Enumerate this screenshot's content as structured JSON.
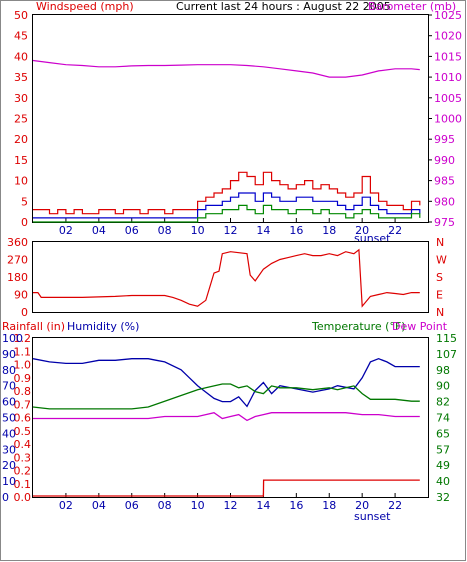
{
  "colors": {
    "wind": "#dd0000",
    "gust": "#dd0000",
    "wind_avg": "#0000cc",
    "wind_green": "#008800",
    "barometer": "#cc00cc",
    "direction": "#dd0000",
    "rain": "#dd0000",
    "humidity": "#0000aa",
    "temperature": "#007700",
    "dewpoint": "#cc00cc",
    "axis": "#000000",
    "tick_left_top": "#dd0000",
    "tick_right_top": "#cc00cc",
    "tick_left_bottom_rain": "#dd0000",
    "tick_left_bottom_hum": "#0000aa",
    "tick_right_bottom": "#007700"
  },
  "chart_data": [
    {
      "type": "line",
      "title": "Current last 24 hours : August 22 2005",
      "left_label": "Windspeed (mph)",
      "right_label": "Barometer (mb)",
      "ylim_left": [
        0,
        50
      ],
      "ylim_right": [
        975,
        1025
      ],
      "yticks_left": [
        "0",
        "5",
        "10",
        "15",
        "20",
        "25",
        "30",
        "35",
        "40",
        "45",
        "50"
      ],
      "yticks_right": [
        "975",
        "980",
        "985",
        "990",
        "995",
        "1000",
        "1005",
        "1010",
        "1015",
        "1020",
        "1025"
      ],
      "xticks": [
        "02",
        "04",
        "06",
        "08",
        "10",
        "12",
        "14",
        "16",
        "18",
        "20",
        "22"
      ],
      "x_annotation": "sunset",
      "xlim": [
        0,
        24
      ],
      "series": [
        {
          "axis": "right",
          "x": [
            0,
            1,
            2,
            3,
            4,
            5,
            6,
            7,
            8,
            9,
            10,
            11,
            12,
            13,
            14,
            15,
            16,
            17,
            18,
            19,
            20,
            21,
            22,
            23,
            23.5
          ],
          "values": [
            1014,
            1013.5,
            1013,
            1012.8,
            1012.5,
            1012.5,
            1012.7,
            1012.8,
            1012.8,
            1012.9,
            1013,
            1013,
            1013,
            1012.8,
            1012.5,
            1012,
            1011.5,
            1011,
            1010,
            1010,
            1010.5,
            1011.5,
            1012,
            1012,
            1011.8
          ]
        },
        {
          "axis": "left",
          "x": [
            0,
            0.5,
            1,
            1.5,
            2,
            2.5,
            3,
            3.5,
            4,
            4.5,
            5,
            5.5,
            6,
            6.5,
            7,
            7.5,
            8,
            8.5,
            9,
            9.5,
            10,
            10.5,
            11,
            11.5,
            12,
            12.5,
            13,
            13.5,
            14,
            14.5,
            15,
            15.5,
            16,
            16.5,
            17,
            17.5,
            18,
            18.5,
            19,
            19.5,
            20,
            20.5,
            21,
            21.5,
            22,
            22.5,
            23,
            23.5
          ],
          "values": [
            3,
            3,
            2,
            3,
            2,
            3,
            2,
            2,
            3,
            3,
            2,
            3,
            3,
            2,
            3,
            3,
            2,
            3,
            3,
            3,
            5,
            6,
            7,
            8,
            10,
            12,
            11,
            9,
            12,
            10,
            9,
            8,
            9,
            10,
            8,
            9,
            8,
            7,
            6,
            7,
            11,
            7,
            5,
            4,
            4,
            3,
            5,
            4
          ]
        },
        {
          "axis": "left",
          "x": [
            0,
            0.5,
            1,
            1.5,
            2,
            2.5,
            3,
            3.5,
            4,
            4.5,
            5,
            5.5,
            6,
            6.5,
            7,
            7.5,
            8,
            8.5,
            9,
            9.5,
            10,
            10.5,
            11,
            11.5,
            12,
            12.5,
            13,
            13.5,
            14,
            14.5,
            15,
            15.5,
            16,
            16.5,
            17,
            17.5,
            18,
            18.5,
            19,
            19.5,
            20,
            20.5,
            21,
            21.5,
            22,
            22.5,
            23,
            23.5
          ],
          "values": [
            1,
            1,
            1,
            1,
            1,
            1,
            1,
            1,
            1,
            1,
            1,
            1,
            1,
            1,
            1,
            1,
            1,
            1,
            1,
            1,
            3,
            4,
            4,
            5,
            6,
            7,
            7,
            5,
            7,
            6,
            5,
            5,
            6,
            6,
            5,
            5,
            5,
            4,
            3,
            4,
            6,
            4,
            3,
            2,
            2,
            2,
            3,
            2
          ]
        },
        {
          "axis": "left",
          "x": [
            0,
            0.5,
            1,
            1.5,
            2,
            2.5,
            3,
            3.5,
            4,
            4.5,
            5,
            5.5,
            6,
            6.5,
            7,
            7.5,
            8,
            8.5,
            9,
            9.5,
            10,
            10.5,
            11,
            11.5,
            12,
            12.5,
            13,
            13.5,
            14,
            14.5,
            15,
            15.5,
            16,
            16.5,
            17,
            17.5,
            18,
            18.5,
            19,
            19.5,
            20,
            20.5,
            21,
            21.5,
            22,
            22.5,
            23,
            23.5
          ],
          "values": [
            0,
            0,
            0,
            0,
            0,
            0,
            0,
            0,
            0,
            0,
            0,
            0,
            0,
            0,
            0,
            0,
            0,
            0,
            0,
            0,
            1,
            2,
            2,
            3,
            3,
            4,
            3,
            2,
            4,
            3,
            3,
            2,
            3,
            3,
            2,
            3,
            2,
            2,
            1,
            2,
            3,
            2,
            1,
            1,
            1,
            1,
            2,
            1
          ]
        }
      ]
    },
    {
      "type": "line",
      "left_label": "",
      "yticks_left": [
        "360",
        "270",
        "180",
        "90",
        "0"
      ],
      "yticks_right": [
        "N",
        "W",
        "S",
        "E",
        "N"
      ],
      "ylim": [
        0,
        360
      ],
      "xlim": [
        0,
        24
      ],
      "series": [
        {
          "x": [
            0,
            0.3,
            0.5,
            3,
            5,
            6,
            7,
            8,
            8.5,
            9,
            9.5,
            10,
            10.5,
            11,
            11.3,
            11.5,
            12,
            13,
            13.2,
            13.5,
            14,
            14.5,
            15,
            15.5,
            16,
            16.5,
            17,
            17.5,
            18,
            18.5,
            19,
            19.5,
            19.8,
            20,
            20.5,
            21,
            21.5,
            22,
            22.5,
            23,
            23.5
          ],
          "values": [
            100,
            100,
            75,
            75,
            80,
            85,
            85,
            85,
            75,
            60,
            40,
            30,
            60,
            200,
            210,
            300,
            310,
            300,
            190,
            160,
            220,
            250,
            270,
            280,
            290,
            300,
            290,
            290,
            300,
            290,
            310,
            300,
            320,
            30,
            80,
            90,
            100,
            95,
            90,
            100,
            100
          ]
        }
      ]
    },
    {
      "type": "line",
      "rain_label": "Rainfall (in)",
      "humidity_label": "Humidity (%)",
      "temp_label": "Temperature (°F)",
      "dew_label": "Dew Point",
      "yticks_left_humidity": [
        "0",
        "10",
        "20",
        "30",
        "40",
        "50",
        "60",
        "70",
        "80",
        "90",
        "100"
      ],
      "yticks_left_rain": [
        "0.0",
        "0.1",
        "0.2",
        "0.3",
        "0.4",
        "0.5",
        "0.6",
        "0.7",
        "0.8",
        "0.9",
        "1.0",
        "1.1",
        "1.2"
      ],
      "yticks_right": [
        "32",
        "40",
        "49",
        "57",
        "65",
        "74",
        "82",
        "90",
        "98",
        "107",
        "115"
      ],
      "ylim_humidity": [
        0,
        100
      ],
      "ylim_temp": [
        32,
        115
      ],
      "xticks": [
        "02",
        "04",
        "06",
        "08",
        "10",
        "12",
        "14",
        "16",
        "18",
        "20",
        "22"
      ],
      "x_annotation": "sunset",
      "xlim": [
        0,
        24
      ],
      "series": [
        {
          "name": "Humidity (%)",
          "axis": "humidity",
          "x": [
            0,
            1,
            2,
            3,
            4,
            5,
            6,
            7,
            7.5,
            8,
            9,
            9.5,
            10,
            10.5,
            11,
            11.5,
            12,
            12.5,
            13,
            13.5,
            14,
            14.5,
            15,
            16,
            17,
            18,
            18.5,
            19,
            19.5,
            20,
            20.5,
            21,
            21.5,
            22,
            22.5,
            23,
            23.5
          ],
          "values": [
            87,
            85,
            84,
            84,
            86,
            86,
            87,
            87,
            86,
            85,
            80,
            75,
            70,
            66,
            62,
            60,
            60,
            63,
            57,
            67,
            72,
            65,
            70,
            68,
            66,
            68,
            70,
            69,
            68,
            75,
            85,
            87,
            85,
            82,
            82,
            82,
            82
          ]
        },
        {
          "name": "Temperature (°F)",
          "axis": "temp",
          "x": [
            0,
            1,
            2,
            3,
            4,
            5,
            6,
            7,
            8,
            9,
            10,
            10.5,
            11,
            11.5,
            12,
            12.5,
            13,
            13.5,
            14,
            14.5,
            15,
            16,
            17,
            18,
            18.5,
            19,
            19.5,
            20,
            20.5,
            21,
            22,
            23,
            23.5
          ],
          "values": [
            79,
            78,
            78,
            78,
            78,
            78,
            78,
            79,
            82,
            85,
            88,
            89,
            90,
            91,
            91,
            89,
            90,
            87,
            86,
            90,
            89,
            89,
            88,
            89,
            88,
            89,
            90,
            86,
            83,
            83,
            83,
            82,
            82
          ]
        },
        {
          "name": "Dew Point",
          "axis": "temp",
          "x": [
            0,
            1,
            2,
            3,
            4,
            5,
            6,
            7,
            8,
            9,
            10,
            10.5,
            11,
            11.5,
            12,
            12.5,
            13,
            13.5,
            14,
            14.5,
            15,
            16,
            17,
            18,
            19,
            20,
            21,
            22,
            23,
            23.5
          ],
          "values": [
            73,
            73,
            73,
            73,
            73,
            73,
            73,
            73,
            74,
            74,
            74,
            75,
            76,
            73,
            74,
            75,
            72,
            74,
            75,
            76,
            76,
            76,
            76,
            76,
            76,
            75,
            75,
            74,
            74,
            74
          ]
        },
        {
          "name": "Rainfall (in)",
          "axis": "rain",
          "x": [
            0,
            13.9,
            14,
            14.01,
            23.5
          ],
          "values": [
            0,
            0,
            0,
            0.12,
            0.12
          ]
        }
      ]
    }
  ]
}
